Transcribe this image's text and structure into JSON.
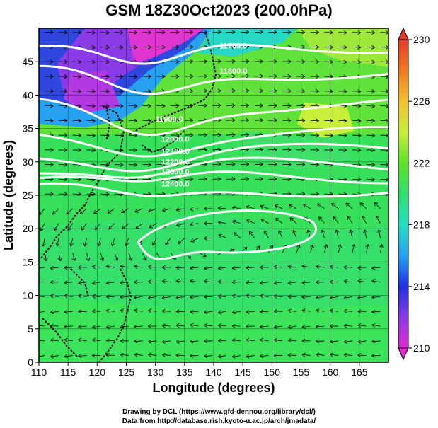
{
  "title": "GSM 18Z30Oct2023 (200.0hPa)",
  "x_axis": {
    "label": "Longitude (degrees)",
    "range": [
      110,
      170
    ],
    "ticks": [
      110,
      115,
      120,
      125,
      130,
      135,
      140,
      145,
      150,
      155,
      160,
      165
    ]
  },
  "y_axis": {
    "label": "Latitude (degrees)",
    "range": [
      0,
      50
    ],
    "ticks": [
      0,
      5,
      10,
      15,
      20,
      25,
      30,
      35,
      40,
      45
    ]
  },
  "colorbar": {
    "range": [
      210,
      230
    ],
    "tick_labels": [
      "230",
      "226",
      "222",
      "218",
      "214",
      "210"
    ],
    "stops": [
      "#e32ad6",
      "#8a3ae6",
      "#2030e0",
      "#27a0f2",
      "#23e0c0",
      "#2ee070",
      "#5ee028",
      "#c8ef3a",
      "#f2c030",
      "#f07a22",
      "#e83a2a"
    ]
  },
  "contours": {
    "color": "#ffffff",
    "labels": [
      "11700.0",
      "11800.0",
      "11900.0",
      "12000.0",
      "12100.0",
      "12200.0",
      "12300.0",
      "12400.0"
    ]
  },
  "credits": [
    "Drawing by DCL (https://www.gfd-dennou.org/library/dcl/)",
    "Data from http://database.rish.kyoto-u.ac.jp/arch/jmadata/"
  ]
}
